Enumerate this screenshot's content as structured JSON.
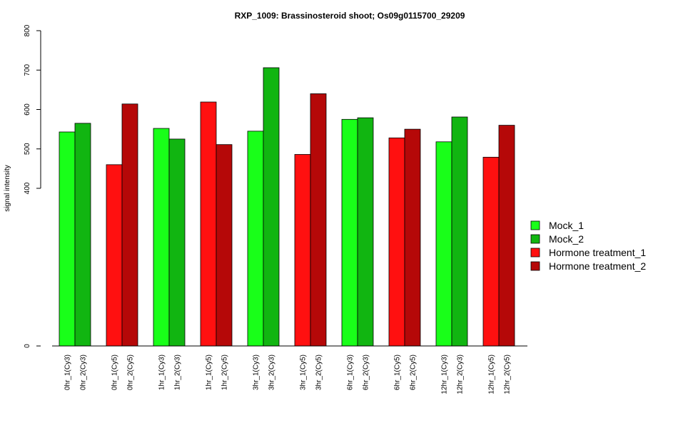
{
  "chart_data": {
    "type": "bar",
    "title": "RXP_1009: Brassinosteroid shoot; Os09g0115700_29209",
    "xlabel": "",
    "ylabel": "signal intensity",
    "y_ticks": [
      0,
      400,
      500,
      600,
      700,
      800
    ],
    "ylim": [
      0,
      800
    ],
    "y_scale": "compressed below 400 (0 shown at base, 400–800 linear)",
    "grid": false,
    "legend_position": "right",
    "series": [
      {
        "name": "Mock_1",
        "color": "#19ff19"
      },
      {
        "name": "Mock_2",
        "color": "#11b511"
      },
      {
        "name": "Hormone treatment_1",
        "color": "#ff1010"
      },
      {
        "name": "Hormone treatment_2",
        "color": "#b50808"
      }
    ],
    "bars": [
      {
        "label": "0hr_1(Cy3)",
        "value": 543,
        "series": 0
      },
      {
        "label": "0hr_2(Cy3)",
        "value": 565,
        "series": 1
      },
      {
        "label": "0hr_1(Cy5)",
        "value": 460,
        "series": 2
      },
      {
        "label": "0hr_2(Cy5)",
        "value": 614,
        "series": 3
      },
      {
        "label": "1hr_1(Cy3)",
        "value": 552,
        "series": 0
      },
      {
        "label": "1hr_2(Cy3)",
        "value": 525,
        "series": 1
      },
      {
        "label": "1hr_1(Cy5)",
        "value": 619,
        "series": 2
      },
      {
        "label": "1hr_2(Cy5)",
        "value": 511,
        "series": 3
      },
      {
        "label": "3hr_1(Cy3)",
        "value": 545,
        "series": 0
      },
      {
        "label": "3hr_2(Cy3)",
        "value": 706,
        "series": 1
      },
      {
        "label": "3hr_1(Cy5)",
        "value": 486,
        "series": 2
      },
      {
        "label": "3hr_2(Cy5)",
        "value": 640,
        "series": 3
      },
      {
        "label": "6hr_1(Cy3)",
        "value": 575,
        "series": 0
      },
      {
        "label": "6hr_2(Cy3)",
        "value": 579,
        "series": 1
      },
      {
        "label": "6hr_1(Cy5)",
        "value": 528,
        "series": 2
      },
      {
        "label": "6hr_2(Cy5)",
        "value": 550,
        "series": 3
      },
      {
        "label": "12hr_1(Cy3)",
        "value": 518,
        "series": 0
      },
      {
        "label": "12hr_2(Cy3)",
        "value": 581,
        "series": 1
      },
      {
        "label": "12hr_1(Cy5)",
        "value": 479,
        "series": 2
      },
      {
        "label": "12hr_2(Cy5)",
        "value": 560,
        "series": 3
      }
    ]
  }
}
